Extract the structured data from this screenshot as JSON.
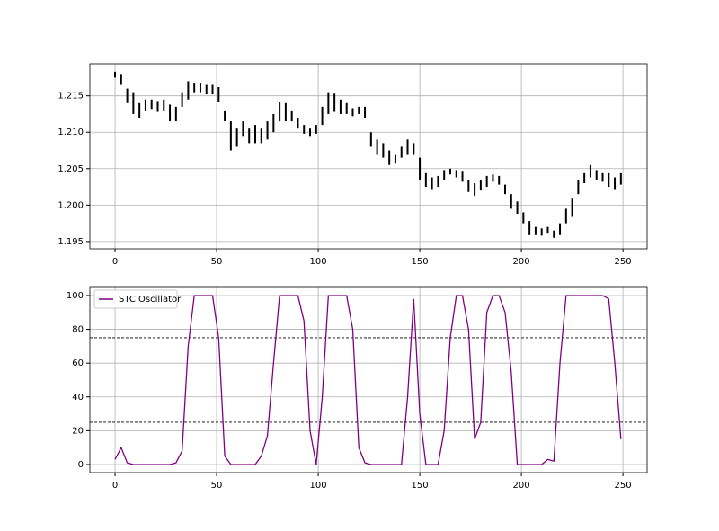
{
  "chart_data": [
    {
      "type": "candlestick",
      "color": "#000000",
      "grid": true,
      "x": [
        0,
        3,
        6,
        9,
        12,
        15,
        18,
        21,
        24,
        27,
        30,
        33,
        36,
        39,
        42,
        45,
        48,
        51,
        54,
        57,
        60,
        63,
        66,
        69,
        72,
        75,
        78,
        81,
        84,
        87,
        90,
        93,
        96,
        99,
        102,
        105,
        108,
        111,
        114,
        117,
        120,
        123,
        126,
        129,
        132,
        135,
        138,
        141,
        144,
        147,
        150,
        153,
        156,
        159,
        162,
        165,
        168,
        171,
        174,
        177,
        180,
        183,
        186,
        189,
        192,
        195,
        198,
        201,
        204,
        207,
        210,
        213,
        216,
        219,
        222,
        225,
        228,
        231,
        234,
        237,
        240,
        243,
        246,
        249
      ],
      "low": [
        1.2175,
        1.2165,
        1.214,
        1.2125,
        1.212,
        1.213,
        1.2132,
        1.2128,
        1.213,
        1.2115,
        1.2115,
        1.2135,
        1.2145,
        1.2155,
        1.2155,
        1.2152,
        1.2152,
        1.2142,
        1.2115,
        1.2075,
        1.208,
        1.2095,
        1.2085,
        1.2085,
        1.2085,
        1.209,
        1.21,
        1.2115,
        1.2115,
        1.2115,
        1.2105,
        1.2098,
        1.2095,
        1.2098,
        1.211,
        1.2125,
        1.2128,
        1.2125,
        1.2125,
        1.2122,
        1.2125,
        1.212,
        1.208,
        1.207,
        1.2065,
        1.2055,
        1.2058,
        1.2065,
        1.207,
        1.207,
        1.2035,
        1.2025,
        1.2022,
        1.2025,
        1.2035,
        1.2042,
        1.2038,
        1.2032,
        1.2018,
        1.2013,
        1.202,
        1.2025,
        1.2032,
        1.2028,
        1.2015,
        1.1995,
        1.1988,
        1.1975,
        1.196,
        1.196,
        1.1958,
        1.1962,
        1.1955,
        1.196,
        1.1975,
        1.1985,
        1.2015,
        1.203,
        1.2038,
        1.2035,
        1.2032,
        1.2025,
        1.2022,
        1.2028
      ],
      "high": [
        1.2183,
        1.218,
        1.216,
        1.2155,
        1.214,
        1.2145,
        1.2145,
        1.2143,
        1.2145,
        1.2138,
        1.2135,
        1.2155,
        1.217,
        1.2168,
        1.2168,
        1.2165,
        1.2165,
        1.2162,
        1.213,
        1.2115,
        1.2105,
        1.2115,
        1.2105,
        1.211,
        1.2105,
        1.2115,
        1.2125,
        1.2142,
        1.214,
        1.213,
        1.212,
        1.211,
        1.2105,
        1.211,
        1.2135,
        1.2155,
        1.2153,
        1.2145,
        1.214,
        1.2133,
        1.2135,
        1.2135,
        1.21,
        1.209,
        1.2085,
        1.2075,
        1.207,
        1.208,
        1.209,
        1.2085,
        1.2065,
        1.2045,
        1.2038,
        1.204,
        1.2048,
        1.205,
        1.2048,
        1.2047,
        1.2035,
        1.203,
        1.2035,
        1.204,
        1.2042,
        1.204,
        1.2028,
        1.2015,
        1.2005,
        1.199,
        1.1978,
        1.197,
        1.1968,
        1.197,
        1.1965,
        1.1975,
        1.1995,
        1.201,
        1.2035,
        1.2045,
        1.2055,
        1.2048,
        1.2045,
        1.2045,
        1.2038,
        1.2045
      ],
      "xlim": [
        -12.4,
        261.9
      ],
      "xticks": [
        0,
        50,
        100,
        150,
        200,
        250
      ],
      "ylim": [
        1.194,
        1.2194
      ],
      "yticks": [
        1.195,
        {
          "value": 1.2,
          "label": "1.200"
        },
        1.205,
        {
          "value": 1.21,
          "label": "1.210"
        },
        1.215
      ]
    },
    {
      "type": "line",
      "grid": true,
      "legend": "upper left",
      "x": [
        0,
        3,
        6,
        9,
        12,
        15,
        18,
        21,
        24,
        27,
        30,
        33,
        36,
        39,
        42,
        45,
        48,
        51,
        54,
        57,
        60,
        63,
        66,
        69,
        72,
        75,
        78,
        81,
        84,
        87,
        90,
        93,
        96,
        99,
        102,
        105,
        108,
        111,
        114,
        117,
        120,
        123,
        126,
        129,
        132,
        135,
        138,
        141,
        144,
        147,
        150,
        153,
        156,
        159,
        162,
        165,
        168,
        171,
        174,
        177,
        180,
        183,
        186,
        189,
        192,
        195,
        198,
        201,
        204,
        207,
        210,
        213,
        216,
        219,
        222,
        225,
        228,
        231,
        234,
        237,
        240,
        243,
        246,
        249
      ],
      "series": [
        {
          "name": "STC Oscillator",
          "color": "#800080",
          "values": [
            3,
            10,
            1,
            0,
            0,
            0,
            0,
            0,
            0,
            0,
            1,
            8,
            70,
            100,
            100,
            100,
            100,
            75,
            5,
            0,
            0,
            0,
            0,
            0,
            5,
            17,
            60,
            100,
            100,
            100,
            100,
            85,
            20,
            0,
            40,
            100,
            100,
            100,
            100,
            80,
            10,
            1,
            0,
            0,
            0,
            0,
            0,
            0,
            40,
            98,
            30,
            0,
            0,
            0,
            20,
            75,
            100,
            100,
            80,
            15,
            25,
            90,
            100,
            100,
            90,
            55,
            0,
            0,
            0,
            0,
            0,
            3,
            2,
            60,
            100,
            100,
            100,
            100,
            100,
            100,
            100,
            98,
            60,
            15
          ]
        }
      ],
      "reference_lines": [
        75,
        25
      ],
      "xlim": [
        -12.4,
        261.9
      ],
      "xticks": [
        0,
        50,
        100,
        150,
        200,
        250
      ],
      "ylim": [
        -4.8,
        105.3
      ],
      "yticks": [
        0,
        20,
        40,
        60,
        80,
        100
      ]
    }
  ]
}
